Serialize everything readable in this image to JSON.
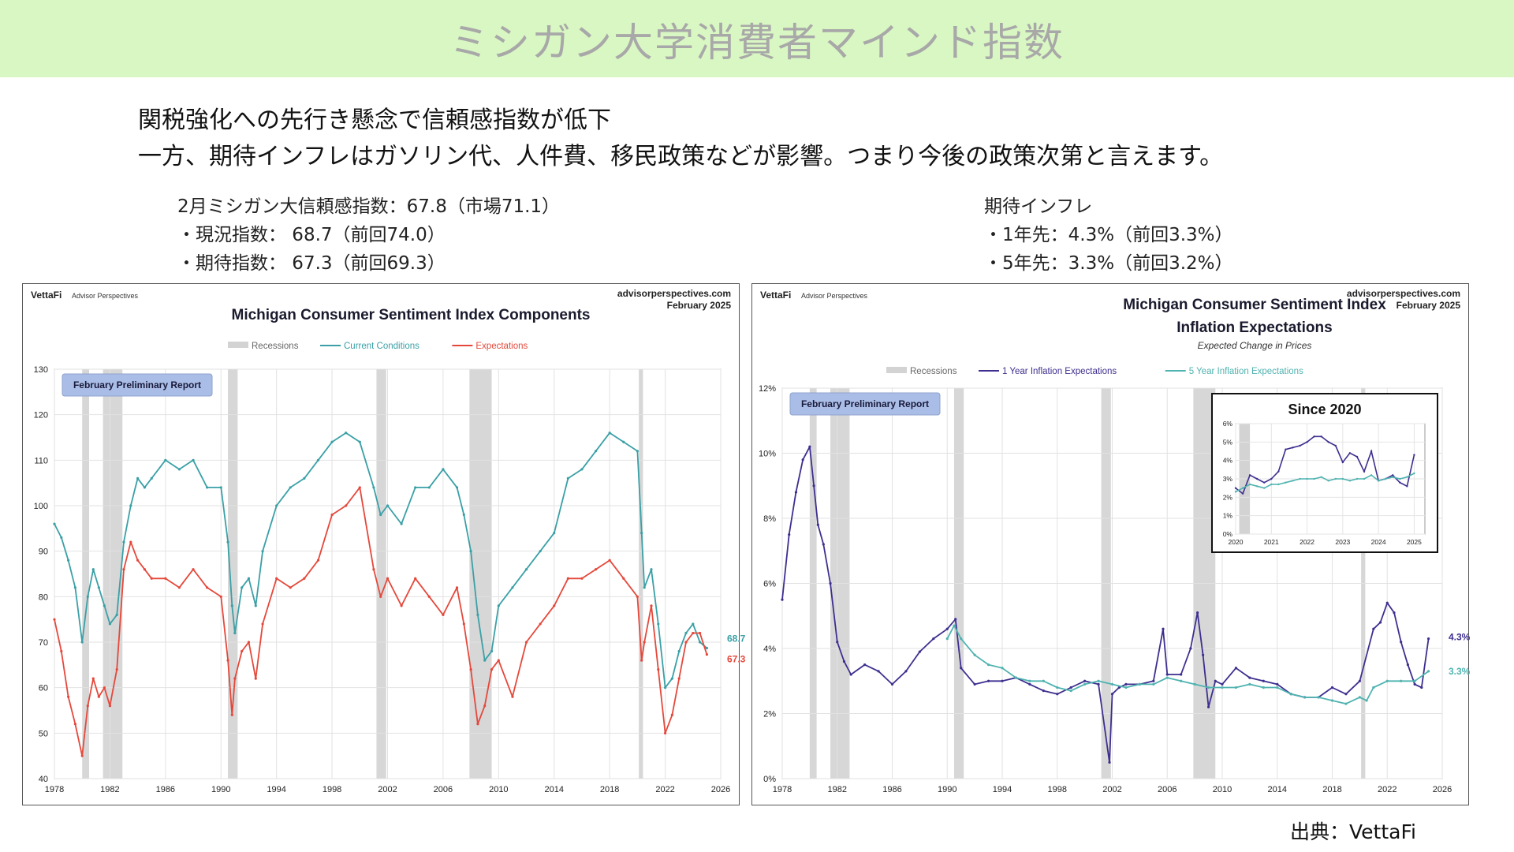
{
  "header": {
    "title": "ミシガン大学消費者マインド指数"
  },
  "headlines": [
    "関税強化への先行き懸念で信頼感指数が低下",
    "一方、期待インフレはガソリン代、人件費、移民政策などが影響。つまり今後の政策次第と言えます。"
  ],
  "left_info": [
    "2月ミシガン大信頼感指数：67.8（市場71.1）",
    "・現況指数： 68.7（前回74.0）",
    "・期待指数： 67.3（前回69.3）"
  ],
  "right_info": [
    "期待インフレ",
    "・1年先：4.3%（前回3.3%）",
    "・5年先：3.3%（前回3.2%）"
  ],
  "source": "出典：VettaFi",
  "colors": {
    "banner": "#d9f7c3",
    "current_conditions": "#3aa0a6",
    "expectations": "#e5483b",
    "one_year": "#3d2f8f",
    "five_year": "#4fb3b0",
    "recession": "#d3d3d3",
    "report_badge": "#a9bde6"
  },
  "chart_data": [
    {
      "type": "line",
      "title": "Michigan Consumer Sentiment Index Components",
      "brand": "VettaFi",
      "brand_sub": "Advisor Perspectives",
      "site": "advisorperspectives.com",
      "date": "February 2025",
      "badge": "February Preliminary Report",
      "xlim": [
        1978,
        2026
      ],
      "ylim": [
        40,
        130
      ],
      "xticks": [
        "1978",
        "1982",
        "1986",
        "1990",
        "1994",
        "1998",
        "2002",
        "2006",
        "2010",
        "2014",
        "2018",
        "2022",
        "2026"
      ],
      "yticks": [
        "40",
        "50",
        "60",
        "70",
        "80",
        "90",
        "100",
        "110",
        "120",
        "130"
      ],
      "grid": true,
      "legend_position": "top-center",
      "legend": [
        "Recessions",
        "Current Conditions",
        "Expectations"
      ],
      "recessions": [
        [
          1980.0,
          1980.5
        ],
        [
          1981.5,
          1982.9
        ],
        [
          1990.5,
          1991.2
        ],
        [
          2001.2,
          2001.9
        ],
        [
          2007.9,
          2009.5
        ],
        [
          2020.1,
          2020.4
        ]
      ],
      "series": [
        {
          "name": "Current Conditions",
          "end_label": "68.7",
          "x": [
            1978,
            1978.5,
            1979,
            1979.5,
            1980,
            1980.4,
            1980.8,
            1981.2,
            1981.6,
            1982,
            1982.5,
            1983,
            1983.5,
            1984,
            1984.5,
            1985,
            1986,
            1987,
            1988,
            1989,
            1990,
            1990.5,
            1990.8,
            1991,
            1991.5,
            1992,
            1992.5,
            1993,
            1994,
            1995,
            1996,
            1997,
            1998,
            1999,
            2000,
            2001,
            2001.5,
            2002,
            2003,
            2004,
            2005,
            2006,
            2007,
            2007.5,
            2008,
            2008.5,
            2009,
            2009.5,
            2010,
            2011,
            2012,
            2013,
            2014,
            2015,
            2016,
            2017,
            2018,
            2019,
            2020,
            2020.3,
            2020.5,
            2021,
            2021.5,
            2022,
            2022.5,
            2023,
            2023.5,
            2024,
            2024.5,
            2025
          ],
          "y": [
            96,
            93,
            88,
            82,
            70,
            80,
            86,
            82,
            78,
            74,
            76,
            92,
            100,
            106,
            104,
            106,
            110,
            108,
            110,
            104,
            104,
            92,
            78,
            72,
            82,
            84,
            78,
            90,
            100,
            104,
            106,
            110,
            114,
            116,
            114,
            104,
            98,
            100,
            96,
            104,
            104,
            108,
            104,
            98,
            90,
            76,
            66,
            68,
            78,
            82,
            86,
            90,
            94,
            106,
            108,
            112,
            116,
            114,
            112,
            94,
            82,
            86,
            74,
            60,
            62,
            68,
            72,
            74,
            70,
            68.7
          ]
        },
        {
          "name": "Expectations",
          "end_label": "67.3",
          "x": [
            1978,
            1978.5,
            1979,
            1979.5,
            1980,
            1980.4,
            1980.8,
            1981.2,
            1981.6,
            1982,
            1982.5,
            1983,
            1983.5,
            1984,
            1984.5,
            1985,
            1986,
            1987,
            1988,
            1989,
            1990,
            1990.5,
            1990.8,
            1991,
            1991.5,
            1992,
            1992.5,
            1993,
            1994,
            1995,
            1996,
            1997,
            1998,
            1999,
            2000,
            2001,
            2001.5,
            2002,
            2003,
            2004,
            2005,
            2006,
            2007,
            2007.5,
            2008,
            2008.5,
            2009,
            2009.5,
            2010,
            2011,
            2012,
            2013,
            2014,
            2015,
            2016,
            2017,
            2018,
            2019,
            2020,
            2020.3,
            2020.5,
            2021,
            2021.5,
            2022,
            2022.5,
            2023,
            2023.5,
            2024,
            2024.5,
            2025
          ],
          "y": [
            75,
            68,
            58,
            52,
            45,
            56,
            62,
            58,
            60,
            56,
            64,
            86,
            92,
            88,
            86,
            84,
            84,
            82,
            86,
            82,
            80,
            66,
            54,
            62,
            68,
            70,
            62,
            74,
            84,
            82,
            84,
            88,
            98,
            100,
            104,
            86,
            80,
            84,
            78,
            84,
            80,
            76,
            82,
            74,
            64,
            52,
            56,
            64,
            66,
            58,
            70,
            74,
            78,
            84,
            84,
            86,
            88,
            84,
            80,
            66,
            70,
            78,
            64,
            50,
            54,
            62,
            70,
            72,
            72,
            67.3
          ]
        }
      ]
    },
    {
      "type": "line",
      "title": "Michigan Consumer Sentiment Index",
      "subtitle": "Inflation Expectations",
      "note": "Expected Change in Prices",
      "brand": "VettaFi",
      "brand_sub": "Advisor Perspectives",
      "site": "advisorperspectives.com",
      "date": "February 2025",
      "badge": "February Preliminary Report",
      "xlim": [
        1978,
        2026
      ],
      "ylim": [
        0,
        12
      ],
      "xticks": [
        "1978",
        "1982",
        "1986",
        "1990",
        "1994",
        "1998",
        "2002",
        "2006",
        "2010",
        "2014",
        "2018",
        "2022",
        "2026"
      ],
      "yticks": [
        "0%",
        "2%",
        "4%",
        "6%",
        "8%",
        "10%",
        "12%"
      ],
      "grid": true,
      "legend_position": "top-center",
      "legend": [
        "Recessions",
        "1 Year Inflation Expectations",
        "5 Year Inflation Expectations"
      ],
      "recessions": [
        [
          1980.0,
          1980.5
        ],
        [
          1981.5,
          1982.9
        ],
        [
          1990.5,
          1991.2
        ],
        [
          2001.2,
          2001.9
        ],
        [
          2007.9,
          2009.5
        ],
        [
          2020.1,
          2020.4
        ]
      ],
      "series": [
        {
          "name": "1 Year Inflation Expectations",
          "end_label": "4.3%",
          "x": [
            1978,
            1978.5,
            1979,
            1979.5,
            1980,
            1980.3,
            1980.6,
            1981,
            1981.5,
            1982,
            1982.5,
            1983,
            1984,
            1985,
            1986,
            1987,
            1988,
            1989,
            1990,
            1990.6,
            1991,
            1992,
            1993,
            1994,
            1995,
            1996,
            1997,
            1998,
            1999,
            2000,
            2001,
            2001.8,
            2002,
            2002.5,
            2003,
            2004,
            2005,
            2005.7,
            2006,
            2007,
            2007.7,
            2008.2,
            2008.6,
            2009,
            2009.5,
            2010,
            2011,
            2012,
            2013,
            2014,
            2015,
            2016,
            2017,
            2018,
            2019,
            2020,
            2021,
            2021.5,
            2022,
            2022.5,
            2023,
            2023.5,
            2024,
            2024.5,
            2025
          ],
          "y": [
            5.5,
            7.5,
            8.8,
            9.8,
            10.2,
            9.0,
            7.8,
            7.2,
            6.0,
            4.2,
            3.6,
            3.2,
            3.5,
            3.3,
            2.9,
            3.3,
            3.9,
            4.3,
            4.6,
            4.9,
            3.4,
            2.9,
            3.0,
            3.0,
            3.1,
            2.9,
            2.7,
            2.6,
            2.8,
            3.0,
            2.9,
            0.5,
            2.6,
            2.8,
            2.9,
            2.9,
            3.0,
            4.6,
            3.2,
            3.2,
            4.0,
            5.1,
            3.8,
            2.2,
            3.0,
            2.9,
            3.4,
            3.1,
            3.0,
            2.9,
            2.6,
            2.5,
            2.5,
            2.8,
            2.6,
            3.0,
            4.6,
            4.8,
            5.4,
            5.1,
            4.2,
            3.5,
            2.9,
            2.8,
            4.3
          ]
        },
        {
          "name": "5 Year Inflation Expectations",
          "end_label": "3.3%",
          "x": [
            1990,
            1990.5,
            1991,
            1992,
            1993,
            1994,
            1995,
            1996,
            1997,
            1998,
            1999,
            2000,
            2001,
            2002,
            2003,
            2004,
            2005,
            2006,
            2007,
            2008,
            2009,
            2010,
            2011,
            2012,
            2013,
            2014,
            2015,
            2016,
            2017,
            2018,
            2019,
            2020,
            2020.5,
            2021,
            2022,
            2023,
            2024,
            2025
          ],
          "y": [
            4.3,
            4.7,
            4.3,
            3.8,
            3.5,
            3.4,
            3.1,
            3.0,
            3.0,
            2.8,
            2.7,
            2.9,
            3.0,
            2.9,
            2.8,
            2.9,
            2.9,
            3.1,
            3.0,
            2.9,
            2.8,
            2.8,
            2.8,
            2.9,
            2.8,
            2.8,
            2.6,
            2.5,
            2.5,
            2.4,
            2.3,
            2.5,
            2.4,
            2.8,
            3.0,
            3.0,
            3.0,
            3.3
          ]
        }
      ],
      "inset": {
        "title": "Since 2020",
        "xlim": [
          2020,
          2025.3
        ],
        "ylim": [
          0,
          6
        ],
        "xticks": [
          "2020",
          "2021",
          "2022",
          "2023",
          "2024",
          "2025"
        ],
        "yticks": [
          "0%",
          "1%",
          "2%",
          "3%",
          "4%",
          "5%",
          "6%"
        ],
        "series": [
          {
            "name": "1 Year Inflation Expectations",
            "x": [
              2020,
              2020.2,
              2020.4,
              2020.6,
              2020.8,
              2021,
              2021.2,
              2021.4,
              2021.6,
              2021.8,
              2022,
              2022.2,
              2022.4,
              2022.6,
              2022.8,
              2023,
              2023.2,
              2023.4,
              2023.6,
              2023.8,
              2024,
              2024.2,
              2024.4,
              2024.6,
              2024.8,
              2025
            ],
            "y": [
              2.5,
              2.2,
              3.2,
              3.0,
              2.8,
              3.0,
              3.4,
              4.6,
              4.7,
              4.8,
              5.0,
              5.3,
              5.3,
              5.0,
              4.8,
              3.9,
              4.4,
              4.2,
              3.4,
              4.5,
              2.9,
              3.0,
              3.2,
              2.8,
              2.6,
              4.3
            ]
          },
          {
            "name": "5 Year Inflation Expectations",
            "x": [
              2020,
              2020.2,
              2020.4,
              2020.6,
              2020.8,
              2021,
              2021.2,
              2021.4,
              2021.6,
              2021.8,
              2022,
              2022.2,
              2022.4,
              2022.6,
              2022.8,
              2023,
              2023.2,
              2023.4,
              2023.6,
              2023.8,
              2024,
              2024.2,
              2024.4,
              2024.6,
              2024.8,
              2025
            ],
            "y": [
              2.3,
              2.5,
              2.7,
              2.6,
              2.5,
              2.7,
              2.7,
              2.8,
              2.9,
              3.0,
              3.0,
              3.0,
              3.1,
              2.9,
              3.0,
              3.0,
              2.9,
              3.0,
              3.0,
              3.2,
              2.9,
              3.0,
              3.1,
              3.0,
              3.1,
              3.3
            ]
          }
        ]
      }
    }
  ]
}
